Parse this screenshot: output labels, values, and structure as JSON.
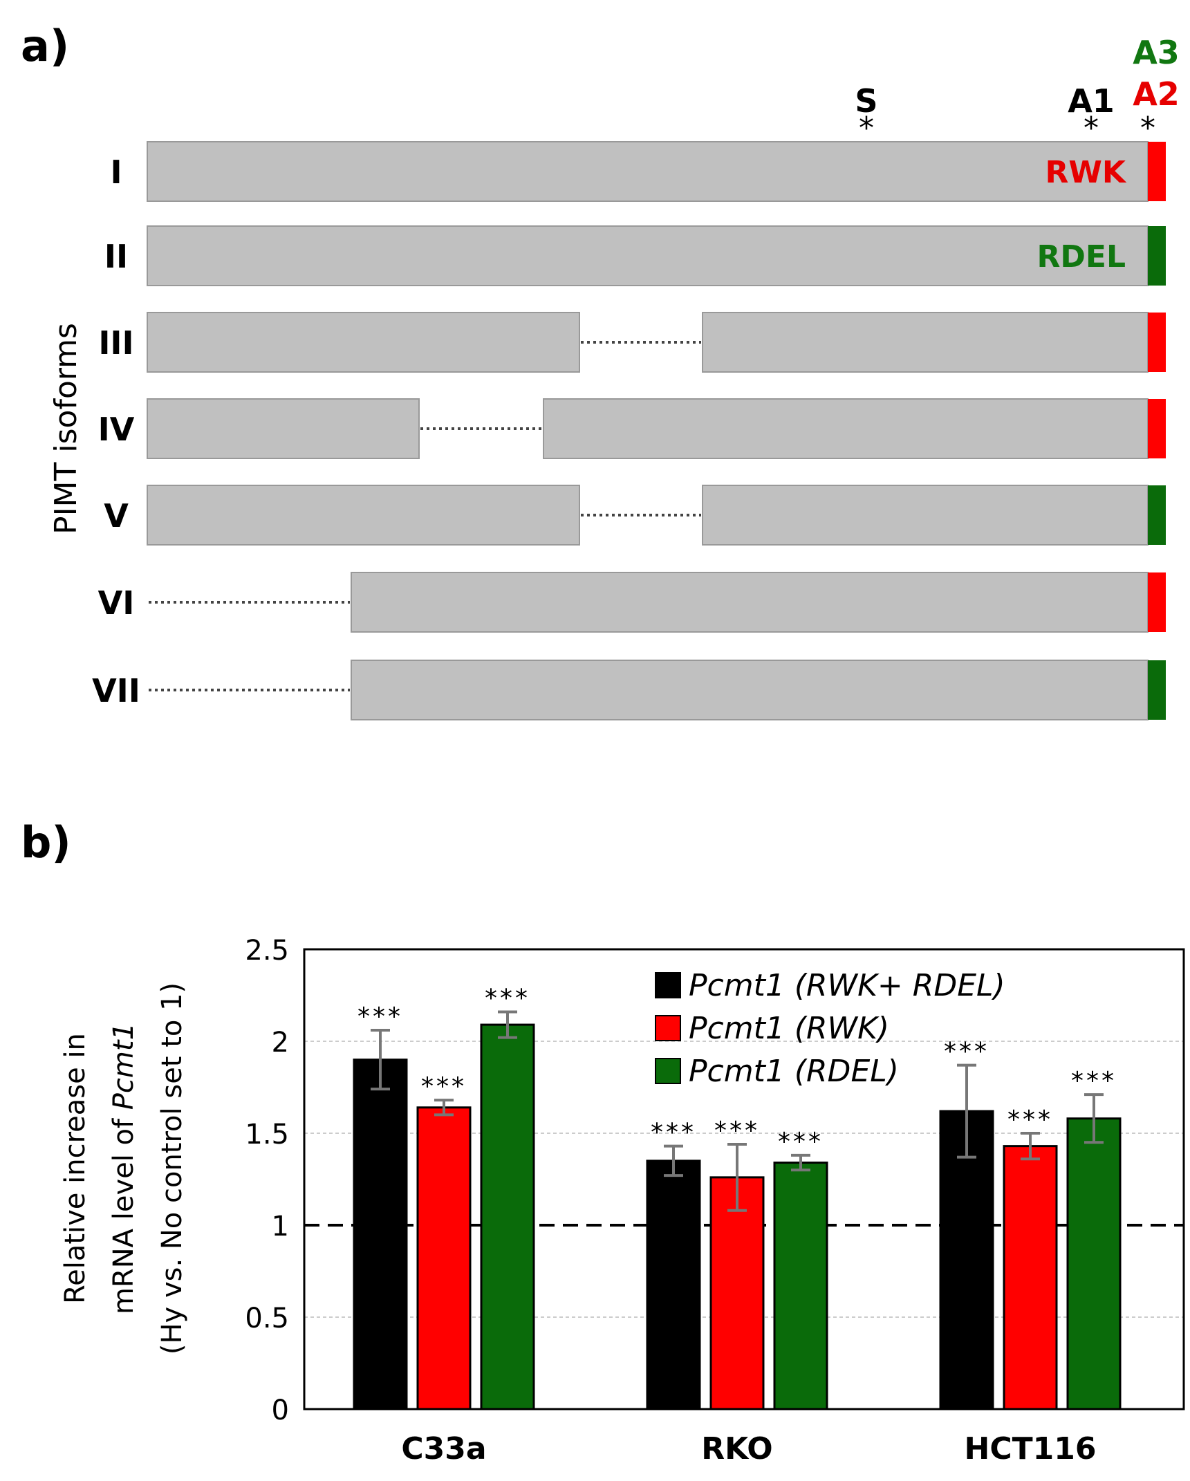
{
  "panel_a": {
    "label": "a)",
    "y_axis_title": "PIMT isoforms",
    "markers": [
      {
        "label": "S",
        "star": "*",
        "color": "#000000"
      },
      {
        "label": "A1",
        "star": "*",
        "color": "#000000"
      },
      {
        "label": "A2",
        "star": "*",
        "color": "#e60000"
      },
      {
        "label": "A3",
        "star": "",
        "color": "#117711"
      }
    ],
    "isoforms": [
      {
        "name": "I",
        "tail": "red",
        "motif": "RWK"
      },
      {
        "name": "II",
        "tail": "green",
        "motif": "RDEL"
      },
      {
        "name": "III",
        "tail": "red",
        "motif": ""
      },
      {
        "name": "IV",
        "tail": "red",
        "motif": ""
      },
      {
        "name": "V",
        "tail": "green",
        "motif": ""
      },
      {
        "name": "VI",
        "tail": "red",
        "motif": ""
      },
      {
        "name": "VII",
        "tail": "green",
        "motif": ""
      }
    ],
    "colors": {
      "bar": "#c0c0c0",
      "red": "#ff0000",
      "green": "#0a6b0a"
    }
  },
  "panel_b": {
    "label": "b)",
    "ylabel_lines": [
      "Relative increase in",
      "mRNA level of ",
      "(Hy vs. No control set to 1)"
    ],
    "ylabel_italic": "Pcmt1"
  },
  "chart_data": {
    "type": "bar",
    "categories": [
      "C33a",
      "RKO",
      "HCT116"
    ],
    "ylim": [
      0,
      2.5
    ],
    "yticks": [
      "0",
      "0.5",
      "1",
      "1.5",
      "2",
      "2.5"
    ],
    "reference_line": 1,
    "series": [
      {
        "name": "Pcmt1 (RWK+ RDEL)",
        "color": "#000000",
        "values": [
          1.9,
          1.35,
          1.62
        ],
        "errors": [
          0.16,
          0.08,
          0.25
        ],
        "significance": [
          "***",
          "***",
          "***"
        ]
      },
      {
        "name": "Pcmt1 (RWK)",
        "color": "#ff0000",
        "values": [
          1.64,
          1.26,
          1.43
        ],
        "errors": [
          0.04,
          0.18,
          0.07
        ],
        "significance": [
          "***",
          "***",
          "***"
        ]
      },
      {
        "name": "Pcmt1 (RDEL)",
        "color": "#0a6b0a",
        "values": [
          2.09,
          1.34,
          1.58
        ],
        "errors": [
          0.07,
          0.04,
          0.13
        ],
        "significance": [
          "***",
          "***",
          "***"
        ]
      }
    ],
    "legend": "top-right",
    "grid": true
  }
}
